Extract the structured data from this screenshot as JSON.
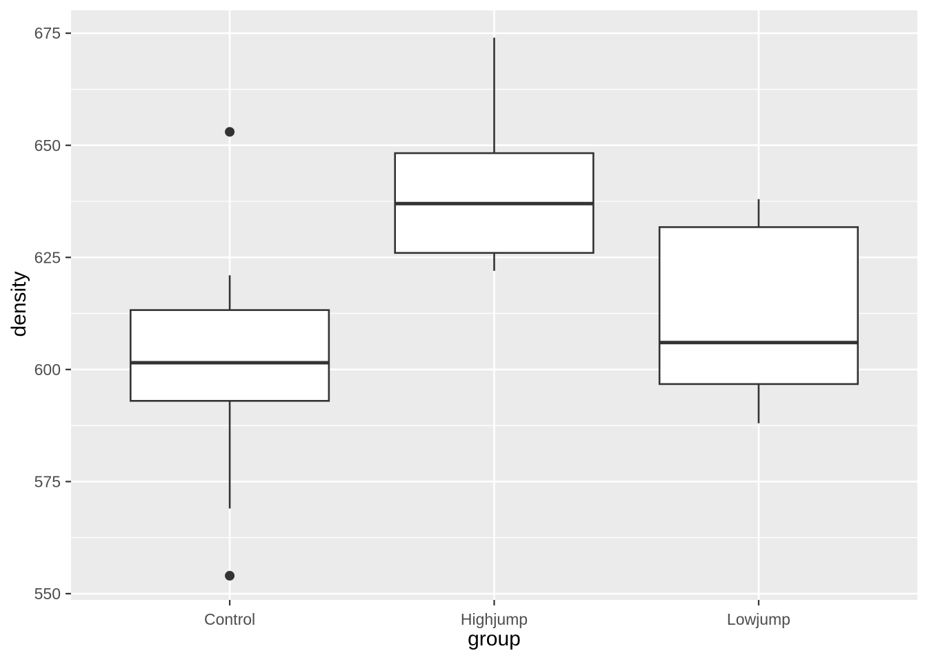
{
  "chart_data": {
    "type": "boxplot",
    "title": "",
    "xlabel": "group",
    "ylabel": "density",
    "categories": [
      "Control",
      "Highjump",
      "Lowjump"
    ],
    "series": [
      {
        "name": "Control",
        "whisker_low": 569,
        "q1": 593,
        "median": 601.5,
        "q3": 613.25,
        "whisker_high": 621,
        "outliers": [
          653,
          554
        ]
      },
      {
        "name": "Highjump",
        "whisker_low": 622,
        "q1": 626,
        "median": 637,
        "q3": 648.25,
        "whisker_high": 674,
        "outliers": []
      },
      {
        "name": "Lowjump",
        "whisker_low": 588,
        "q1": 596.75,
        "median": 606,
        "q3": 631.75,
        "whisker_high": 638,
        "outliers": []
      }
    ],
    "y_ticks": [
      550,
      575,
      600,
      625,
      650,
      675
    ],
    "y_minor_ticks": [
      562.5,
      587.5,
      612.5,
      637.5,
      662.5
    ],
    "ylim": [
      548.6,
      680.1
    ],
    "grid": true,
    "legend": false,
    "colors": {
      "page_bg": "#ffffff",
      "panel_bg": "#ebebeb",
      "grid": "#ffffff",
      "box_stroke": "#333333",
      "box_fill": "#ffffff",
      "outlier": "#333333",
      "tick_mark": "#333333",
      "tick_label": "#4d4d4d",
      "axis_title": "#000000"
    }
  }
}
